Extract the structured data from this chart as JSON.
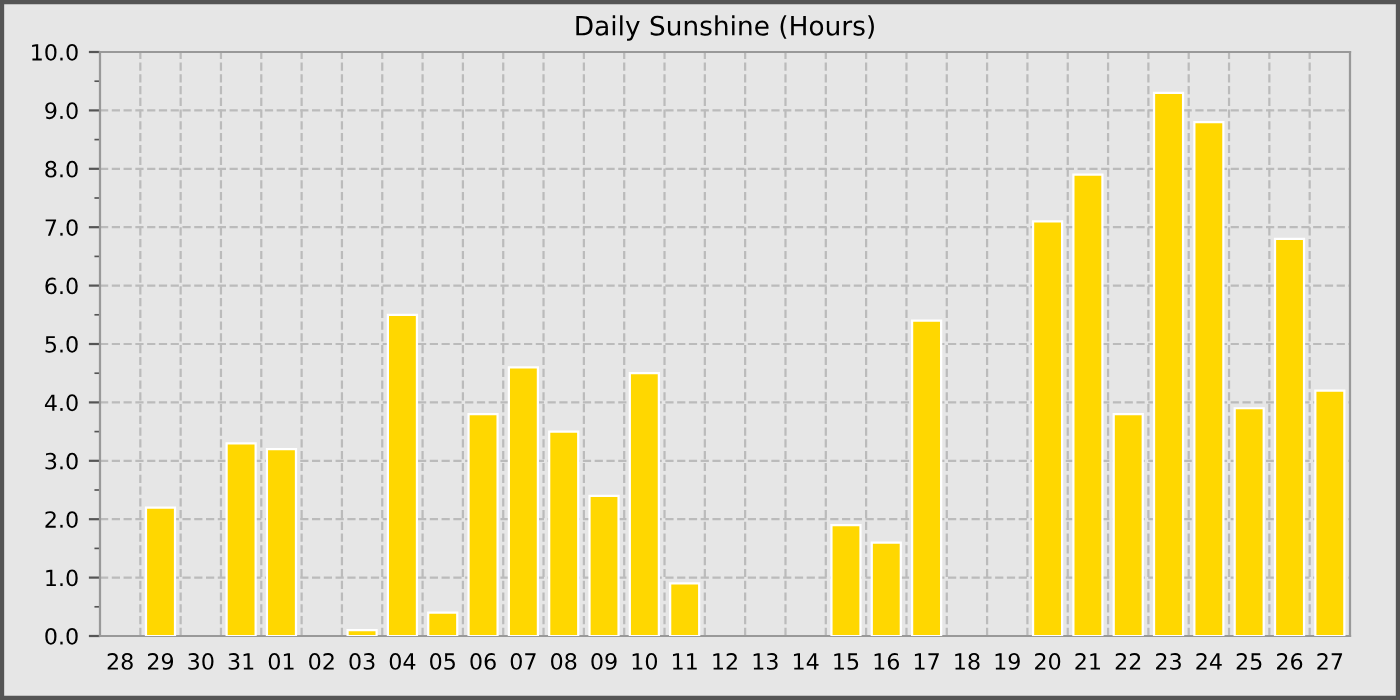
{
  "chart_data": {
    "type": "bar",
    "title": "Daily Sunshine (Hours)",
    "categories": [
      "28",
      "29",
      "30",
      "31",
      "01",
      "02",
      "03",
      "04",
      "05",
      "06",
      "07",
      "08",
      "09",
      "10",
      "11",
      "12",
      "13",
      "14",
      "15",
      "16",
      "17",
      "18",
      "19",
      "20",
      "21",
      "22",
      "23",
      "24",
      "25",
      "26",
      "27"
    ],
    "values": [
      0,
      2.2,
      0,
      3.3,
      3.2,
      0,
      0.1,
      5.5,
      0.4,
      3.8,
      4.6,
      3.5,
      2.4,
      4.5,
      0.9,
      0,
      0,
      0,
      1.9,
      1.6,
      5.4,
      0,
      0,
      7.1,
      7.9,
      3.8,
      9.3,
      8.8,
      3.9,
      6.8,
      4.2
    ],
    "color": "#ffd700",
    "ylim": [
      0,
      10
    ],
    "yticks": [
      {
        "value": 0,
        "label": "0.0"
      },
      {
        "value": 1,
        "label": "1.0"
      },
      {
        "value": 2,
        "label": "2.0"
      },
      {
        "value": 3,
        "label": "3.0"
      },
      {
        "value": 4,
        "label": "4.0"
      },
      {
        "value": 5,
        "label": "5.0"
      },
      {
        "value": 6,
        "label": "6.0"
      },
      {
        "value": 7,
        "label": "7.0"
      },
      {
        "value": 8,
        "label": "8.0"
      },
      {
        "value": 9,
        "label": "9.0"
      },
      {
        "value": 10,
        "label": "10.0"
      }
    ],
    "grid": true
  }
}
